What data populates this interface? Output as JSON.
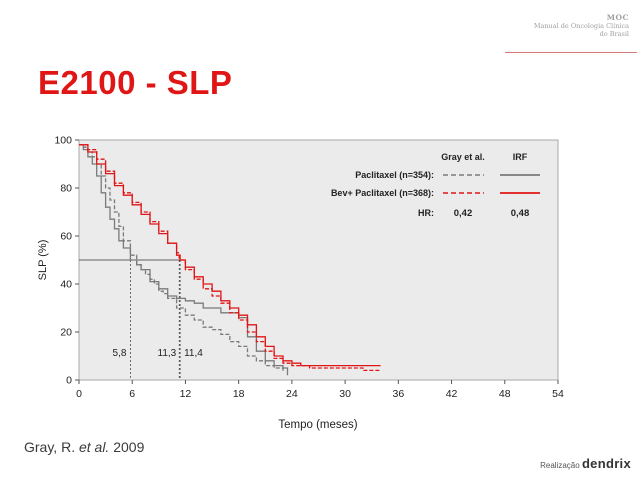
{
  "brand": {
    "code": "MOC",
    "line1": "Manual de Oncologia Clínica",
    "line2": "do Brasil"
  },
  "slide_title": "E2100 - SLP",
  "citation": {
    "prefix": "Gray, R. ",
    "italic": "et al.",
    "suffix": " 2009"
  },
  "footer": {
    "label": "Realização",
    "brand": "dendrix"
  },
  "chart_data": {
    "type": "line",
    "xlabel": "Tempo (meses)",
    "ylabel": "SLP (%)",
    "xlim": [
      0,
      54
    ],
    "ylim": [
      0,
      100
    ],
    "xticks": [
      0,
      6,
      12,
      18,
      24,
      30,
      36,
      42,
      48,
      54
    ],
    "yticks": [
      0,
      20,
      40,
      60,
      80,
      100
    ],
    "legend": {
      "header_gray": "Gray et al.",
      "header_irf": "IRF",
      "hr_label": "HR:",
      "hr_gray": "0,42",
      "hr_irf": "0,48",
      "rows": [
        {
          "label": "Paclitaxel (n=354):",
          "color": "#7a7a7a"
        },
        {
          "label": "Bev+ Paclitaxel (n=368):",
          "color": "#e01616"
        }
      ]
    },
    "median_line_y": 50,
    "medians": [
      {
        "x": 5.8,
        "label": "5,8"
      },
      {
        "x": 11.3,
        "label": "11,3"
      },
      {
        "x": 11.4,
        "label": "11,4"
      }
    ],
    "series": [
      {
        "name": "Paclitaxel (Gray et al.)",
        "color": "#7a7a7a",
        "dash": "4 2",
        "x": [
          0,
          0.5,
          1,
          1.5,
          2,
          2.5,
          3,
          3.5,
          4,
          4.5,
          5,
          5.8,
          6.5,
          7,
          7.5,
          8,
          8.5,
          9,
          9.5,
          10,
          11,
          12,
          13,
          14,
          15,
          16,
          17,
          18,
          19,
          20,
          21,
          22,
          23
        ],
        "y": [
          98,
          97,
          95,
          93,
          90,
          85,
          80,
          75,
          70,
          64,
          58,
          52,
          48,
          46,
          44,
          42,
          40,
          37,
          36,
          34,
          30,
          27,
          25,
          22,
          21,
          19,
          16,
          14,
          10,
          8,
          6,
          5,
          3
        ]
      },
      {
        "name": "Paclitaxel (IRF)",
        "color": "#7a7a7a",
        "dash": "",
        "x": [
          0,
          0.5,
          1,
          1.5,
          2,
          2.5,
          3,
          3.5,
          4,
          4.5,
          5,
          5.8,
          6.5,
          7,
          8,
          9,
          10,
          11,
          12,
          13,
          14,
          16,
          18,
          19,
          20,
          21,
          22,
          23,
          23.5
        ],
        "y": [
          98,
          96,
          93,
          90,
          85,
          78,
          72,
          67,
          63,
          58,
          55,
          50,
          48,
          46,
          41,
          38,
          35,
          34,
          33,
          32,
          30,
          28,
          26,
          18,
          12,
          8,
          6,
          5,
          2
        ]
      },
      {
        "name": "Bev+ Paclitaxel (Gray et al.)",
        "color": "#e01616",
        "dash": "4 2",
        "x": [
          0,
          1,
          2,
          3,
          4,
          5,
          6,
          7,
          8,
          9,
          10,
          11,
          11.3,
          12,
          13,
          14,
          15,
          16,
          17,
          18,
          19,
          20,
          21,
          22,
          23,
          24,
          26,
          28,
          30,
          32,
          34
        ],
        "y": [
          98,
          96,
          92,
          87,
          82,
          78,
          74,
          70,
          66,
          62,
          57,
          53,
          50,
          46,
          42,
          38,
          35,
          32,
          28,
          25,
          20,
          16,
          12,
          9,
          7,
          6,
          5,
          5,
          5,
          4,
          4
        ]
      },
      {
        "name": "Bev+ Paclitaxel (IRF)",
        "color": "#e01616",
        "dash": "",
        "x": [
          0,
          1,
          2,
          3,
          4,
          5,
          6,
          7,
          8,
          9,
          10,
          11,
          11.4,
          12,
          13,
          14,
          15,
          16,
          17,
          18,
          19,
          20,
          21,
          22,
          23,
          24,
          25,
          27,
          30,
          34
        ],
        "y": [
          98,
          95,
          90,
          86,
          81,
          77,
          73,
          69,
          65,
          61,
          57,
          52,
          50,
          47,
          43,
          40,
          37,
          33,
          30,
          27,
          23,
          18,
          14,
          10,
          8,
          7,
          6,
          6,
          6,
          6
        ]
      }
    ]
  }
}
